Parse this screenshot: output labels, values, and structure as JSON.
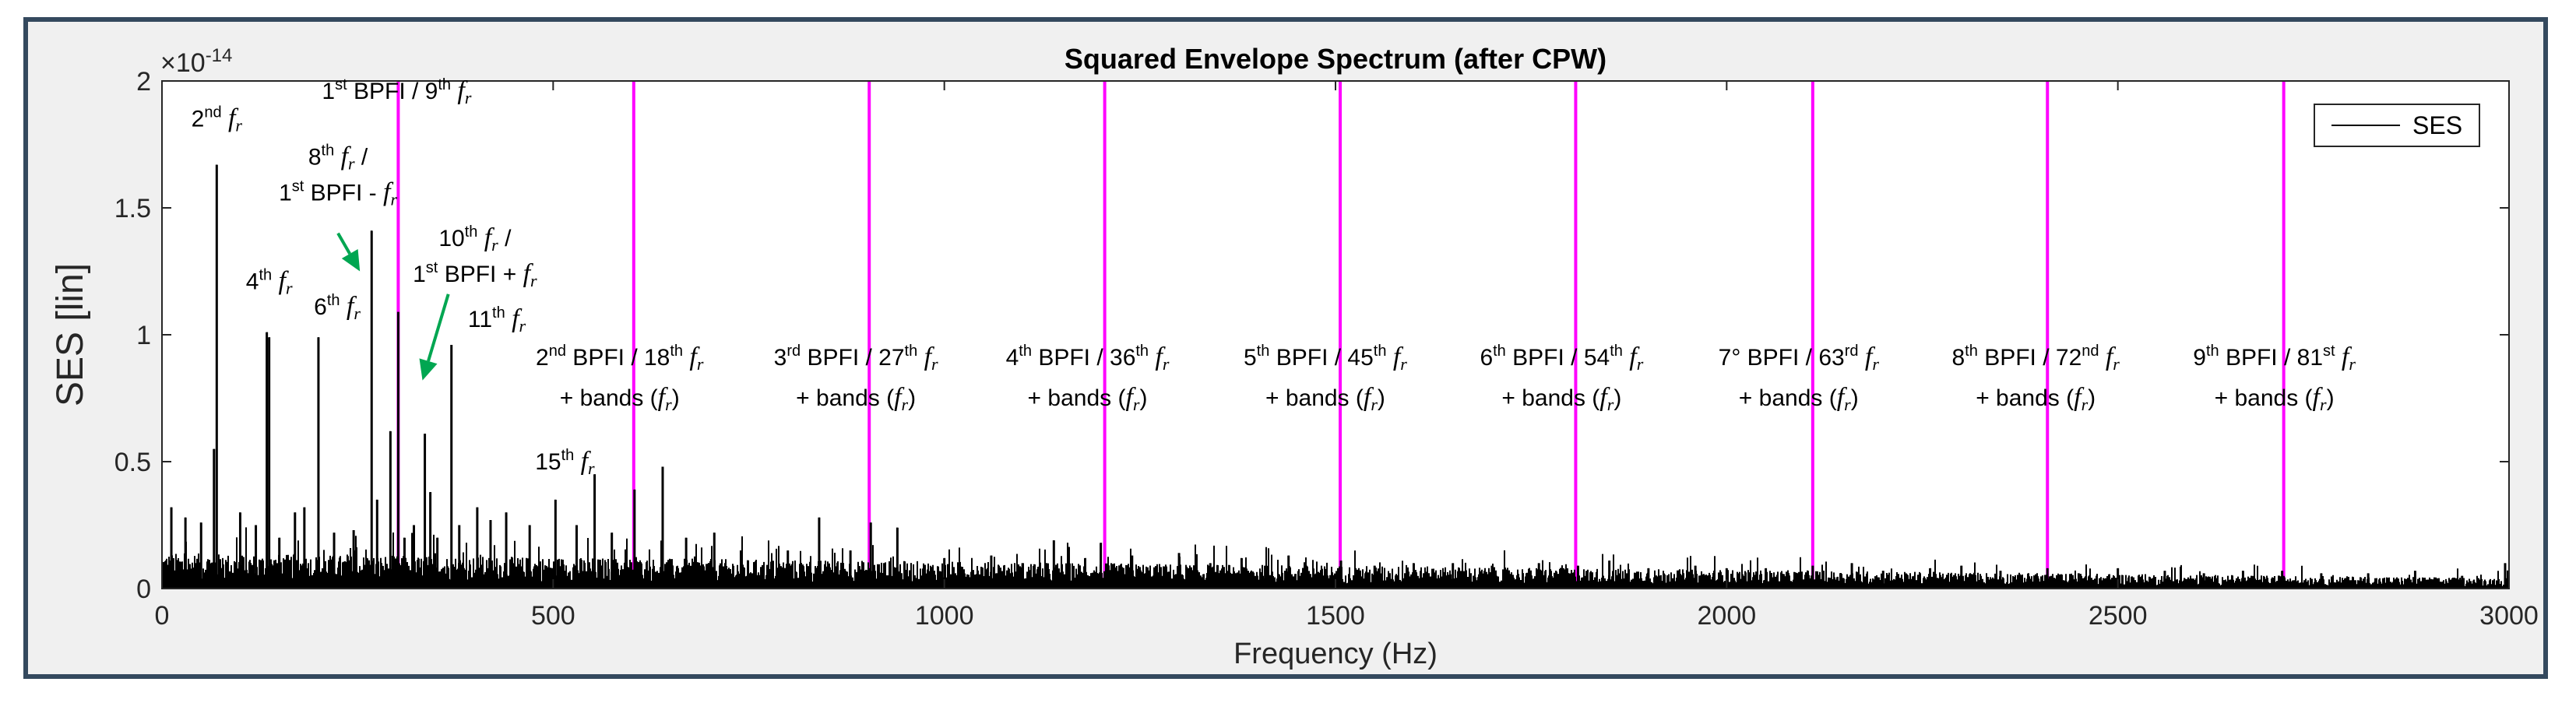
{
  "chart_data": {
    "type": "line",
    "title": "Squared Envelope Spectrum (after CPW)",
    "xlabel": "Frequency (Hz)",
    "ylabel": "SES [lin]",
    "y_exponent_label": "×10",
    "y_exponent": "-14",
    "xlim": [
      0,
      3000
    ],
    "ylim": [
      0,
      2
    ],
    "xticks": [
      0,
      500,
      1000,
      1500,
      2000,
      2500,
      3000
    ],
    "yticks": [
      0,
      0.5,
      1,
      1.5,
      2
    ],
    "ytick_labels": [
      "0",
      "0.5",
      "1",
      "1.5",
      "2"
    ],
    "legend": {
      "label": "SES",
      "position": "top-right"
    },
    "series": [
      {
        "name": "SES",
        "color": "#000000",
        "noise_floor": {
          "at_0": 0.1,
          "at_3000": 0.03
        },
        "peaks": [
          {
            "x": 12,
            "y": 0.32
          },
          {
            "x": 30,
            "y": 0.28
          },
          {
            "x": 50,
            "y": 0.26
          },
          {
            "x": 66.5,
            "y": 0.55
          },
          {
            "x": 70,
            "y": 1.67
          },
          {
            "x": 100,
            "y": 0.3
          },
          {
            "x": 120,
            "y": 0.25
          },
          {
            "x": 134,
            "y": 1.01
          },
          {
            "x": 137,
            "y": 0.99
          },
          {
            "x": 150,
            "y": 0.2
          },
          {
            "x": 170,
            "y": 0.3
          },
          {
            "x": 182,
            "y": 0.32
          },
          {
            "x": 200,
            "y": 0.99
          },
          {
            "x": 220,
            "y": 0.22
          },
          {
            "x": 245,
            "y": 0.23
          },
          {
            "x": 262,
            "y": 0.12
          },
          {
            "x": 268,
            "y": 1.41
          },
          {
            "x": 275,
            "y": 0.35
          },
          {
            "x": 292,
            "y": 0.62
          },
          {
            "x": 302,
            "y": 1.09
          },
          {
            "x": 310,
            "y": 0.2
          },
          {
            "x": 322,
            "y": 0.25
          },
          {
            "x": 336,
            "y": 0.61
          },
          {
            "x": 343,
            "y": 0.38
          },
          {
            "x": 352,
            "y": 0.2
          },
          {
            "x": 370,
            "y": 0.96
          },
          {
            "x": 380,
            "y": 0.25
          },
          {
            "x": 403,
            "y": 0.32
          },
          {
            "x": 420,
            "y": 0.27
          },
          {
            "x": 440,
            "y": 0.3
          },
          {
            "x": 470,
            "y": 0.25
          },
          {
            "x": 503,
            "y": 0.35
          },
          {
            "x": 530,
            "y": 0.25
          },
          {
            "x": 553,
            "y": 0.45
          },
          {
            "x": 575,
            "y": 0.22
          },
          {
            "x": 604,
            "y": 0.39
          },
          {
            "x": 640,
            "y": 0.48
          },
          {
            "x": 670,
            "y": 0.2
          },
          {
            "x": 706,
            "y": 0.22
          },
          {
            "x": 740,
            "y": 0.15
          },
          {
            "x": 800,
            "y": 0.15
          },
          {
            "x": 840,
            "y": 0.28
          },
          {
            "x": 880,
            "y": 0.15
          },
          {
            "x": 906,
            "y": 0.26
          },
          {
            "x": 940,
            "y": 0.24
          },
          {
            "x": 1000,
            "y": 0.12
          },
          {
            "x": 1060,
            "y": 0.13
          },
          {
            "x": 1100,
            "y": 0.1
          },
          {
            "x": 1140,
            "y": 0.19
          },
          {
            "x": 1180,
            "y": 0.12
          },
          {
            "x": 1200,
            "y": 0.18
          },
          {
            "x": 1240,
            "y": 0.13
          },
          {
            "x": 1300,
            "y": 0.14
          },
          {
            "x": 1340,
            "y": 0.1
          },
          {
            "x": 1380,
            "y": 0.12
          },
          {
            "x": 1410,
            "y": 0.09
          },
          {
            "x": 1440,
            "y": 0.13
          },
          {
            "x": 1507,
            "y": 0.11
          },
          {
            "x": 1550,
            "y": 0.09
          },
          {
            "x": 1600,
            "y": 0.1
          },
          {
            "x": 1650,
            "y": 0.1
          },
          {
            "x": 1700,
            "y": 0.09
          },
          {
            "x": 1760,
            "y": 0.1
          },
          {
            "x": 1810,
            "y": 0.09
          },
          {
            "x": 1850,
            "y": 0.11
          },
          {
            "x": 1900,
            "y": 0.08
          },
          {
            "x": 1960,
            "y": 0.09
          },
          {
            "x": 2000,
            "y": 0.08
          },
          {
            "x": 2050,
            "y": 0.08
          },
          {
            "x": 2110,
            "y": 0.09
          },
          {
            "x": 2160,
            "y": 0.1
          },
          {
            "x": 2200,
            "y": 0.07
          },
          {
            "x": 2260,
            "y": 0.08
          },
          {
            "x": 2300,
            "y": 0.09
          },
          {
            "x": 2350,
            "y": 0.07
          },
          {
            "x": 2410,
            "y": 0.08
          },
          {
            "x": 2450,
            "y": 0.06
          },
          {
            "x": 2500,
            "y": 0.08
          },
          {
            "x": 2560,
            "y": 0.07
          },
          {
            "x": 2610,
            "y": 0.06
          },
          {
            "x": 2660,
            "y": 0.07
          },
          {
            "x": 2710,
            "y": 0.07
          },
          {
            "x": 2760,
            "y": 0.06
          },
          {
            "x": 2820,
            "y": 0.06
          },
          {
            "x": 2880,
            "y": 0.07
          },
          {
            "x": 2940,
            "y": 0.05
          },
          {
            "x": 2995,
            "y": 0.1
          }
        ]
      }
    ],
    "bpfi_lines": {
      "color": "#ff00ff",
      "x": [
        302,
        603,
        904,
        1205,
        1506,
        1807,
        2110,
        2410,
        2712
      ]
    },
    "arrow_color": "#00a651",
    "annotations": [
      {
        "x": 70,
        "y": 1.82,
        "lines": [
          [
            [
              "2",
              "n"
            ],
            [
              "nd",
              "sup"
            ],
            [
              " ",
              "n"
            ],
            [
              "f",
              "fi"
            ],
            [
              "r",
              "fsub"
            ]
          ]
        ]
      },
      {
        "x": 300,
        "y": 1.93,
        "lines": [
          [
            [
              "1",
              "n"
            ],
            [
              "st",
              "sup"
            ],
            [
              " BPFI / 9",
              "n"
            ],
            [
              "th",
              "sup"
            ],
            [
              " ",
              "n"
            ],
            [
              "f",
              "fi"
            ],
            [
              "r",
              "fsub"
            ]
          ]
        ]
      },
      {
        "x": 225,
        "y": 1.67,
        "lines": [
          [
            [
              "8",
              "n"
            ],
            [
              "th",
              "sup"
            ],
            [
              " ",
              "n"
            ],
            [
              "f",
              "fi"
            ],
            [
              "r",
              "fsub"
            ],
            [
              " /",
              "n"
            ]
          ],
          [
            [
              "1",
              "n"
            ],
            [
              "st",
              "sup"
            ],
            [
              " BPFI - ",
              "n"
            ],
            [
              "f",
              "fi"
            ],
            [
              "r",
              "fsub"
            ]
          ]
        ]
      },
      {
        "x": 137,
        "y": 1.18,
        "lines": [
          [
            [
              "4",
              "n"
            ],
            [
              "th",
              "sup"
            ],
            [
              " ",
              "n"
            ],
            [
              "f",
              "fi"
            ],
            [
              "r",
              "fsub"
            ]
          ]
        ]
      },
      {
        "x": 224,
        "y": 1.08,
        "lines": [
          [
            [
              "6",
              "n"
            ],
            [
              "th",
              "sup"
            ],
            [
              " ",
              "n"
            ],
            [
              "f",
              "fi"
            ],
            [
              "r",
              "fsub"
            ]
          ]
        ]
      },
      {
        "x": 400,
        "y": 1.35,
        "lines": [
          [
            [
              "10",
              "n"
            ],
            [
              "th",
              "sup"
            ],
            [
              " ",
              "n"
            ],
            [
              "f",
              "fi"
            ],
            [
              "r",
              "fsub"
            ],
            [
              " /",
              "n"
            ]
          ],
          [
            [
              "1",
              "n"
            ],
            [
              "st",
              "sup"
            ],
            [
              " BPFI + ",
              "n"
            ],
            [
              "f",
              "fi"
            ],
            [
              "r",
              "fsub"
            ]
          ]
        ]
      },
      {
        "x": 428,
        "y": 1.03,
        "lines": [
          [
            [
              "11",
              "n"
            ],
            [
              "th",
              "sup"
            ],
            [
              " ",
              "n"
            ],
            [
              "f",
              "fi"
            ],
            [
              "r",
              "fsub"
            ]
          ]
        ]
      },
      {
        "x": 515,
        "y": 0.47,
        "lines": [
          [
            [
              "15",
              "n"
            ],
            [
              "th",
              "sup"
            ],
            [
              " ",
              "n"
            ],
            [
              "f",
              "fi"
            ],
            [
              "r",
              "fsub"
            ]
          ]
        ]
      },
      {
        "x": 585,
        "y": 0.88,
        "lines": [
          [
            [
              "2",
              "n"
            ],
            [
              "nd",
              "sup"
            ],
            [
              " BPFI / 18",
              "n"
            ],
            [
              "th",
              "sup"
            ],
            [
              " ",
              "n"
            ],
            [
              "f",
              "fi"
            ],
            [
              "r",
              "fsub"
            ]
          ],
          [
            [
              "+ bands (",
              "n"
            ],
            [
              "f",
              "fi"
            ],
            [
              "r",
              "fsub"
            ],
            [
              ")",
              "n"
            ]
          ]
        ]
      },
      {
        "x": 887,
        "y": 0.88,
        "lines": [
          [
            [
              "3",
              "n"
            ],
            [
              "rd",
              "sup"
            ],
            [
              " BPFI / 27",
              "n"
            ],
            [
              "th",
              "sup"
            ],
            [
              " ",
              "n"
            ],
            [
              "f",
              "fi"
            ],
            [
              "r",
              "fsub"
            ]
          ],
          [
            [
              "+ bands (",
              "n"
            ],
            [
              "f",
              "fi"
            ],
            [
              "r",
              "fsub"
            ],
            [
              ")",
              "n"
            ]
          ]
        ]
      },
      {
        "x": 1183,
        "y": 0.88,
        "lines": [
          [
            [
              "4",
              "n"
            ],
            [
              "th",
              "sup"
            ],
            [
              " BPFI / 36",
              "n"
            ],
            [
              "th",
              "sup"
            ],
            [
              " ",
              "n"
            ],
            [
              "f",
              "fi"
            ],
            [
              "r",
              "fsub"
            ]
          ],
          [
            [
              "+ bands (",
              "n"
            ],
            [
              "f",
              "fi"
            ],
            [
              "r",
              "fsub"
            ],
            [
              ")",
              "n"
            ]
          ]
        ]
      },
      {
        "x": 1487,
        "y": 0.88,
        "lines": [
          [
            [
              "5",
              "n"
            ],
            [
              "th",
              "sup"
            ],
            [
              " BPFI / 45",
              "n"
            ],
            [
              "th",
              "sup"
            ],
            [
              " ",
              "n"
            ],
            [
              "f",
              "fi"
            ],
            [
              "r",
              "fsub"
            ]
          ],
          [
            [
              "+ bands (",
              "n"
            ],
            [
              "f",
              "fi"
            ],
            [
              "r",
              "fsub"
            ],
            [
              ")",
              "n"
            ]
          ]
        ]
      },
      {
        "x": 1789,
        "y": 0.88,
        "lines": [
          [
            [
              "6",
              "n"
            ],
            [
              "th",
              "sup"
            ],
            [
              " BPFI / 54",
              "n"
            ],
            [
              "th",
              "sup"
            ],
            [
              " ",
              "n"
            ],
            [
              "f",
              "fi"
            ],
            [
              "r",
              "fsub"
            ]
          ],
          [
            [
              "+ bands (",
              "n"
            ],
            [
              "f",
              "fi"
            ],
            [
              "r",
              "fsub"
            ],
            [
              ")",
              "n"
            ]
          ]
        ]
      },
      {
        "x": 2092,
        "y": 0.88,
        "lines": [
          [
            [
              "7° BPFI / 63",
              "n"
            ],
            [
              "rd",
              "sup"
            ],
            [
              " ",
              "n"
            ],
            [
              "f",
              "fi"
            ],
            [
              "r",
              "fsub"
            ]
          ],
          [
            [
              "+ bands (",
              "n"
            ],
            [
              "f",
              "fi"
            ],
            [
              "r",
              "fsub"
            ],
            [
              ")",
              "n"
            ]
          ]
        ]
      },
      {
        "x": 2395,
        "y": 0.88,
        "lines": [
          [
            [
              "8",
              "n"
            ],
            [
              "th",
              "sup"
            ],
            [
              " BPFI / 72",
              "n"
            ],
            [
              "nd",
              "sup"
            ],
            [
              " ",
              "n"
            ],
            [
              "f",
              "fi"
            ],
            [
              "r",
              "fsub"
            ]
          ],
          [
            [
              "+ bands (",
              "n"
            ],
            [
              "f",
              "fi"
            ],
            [
              "r",
              "fsub"
            ],
            [
              ")",
              "n"
            ]
          ]
        ]
      },
      {
        "x": 2700,
        "y": 0.88,
        "lines": [
          [
            [
              "9",
              "n"
            ],
            [
              "th",
              "sup"
            ],
            [
              " BPFI / 81",
              "n"
            ],
            [
              "st",
              "sup"
            ],
            [
              " ",
              "n"
            ],
            [
              "f",
              "fi"
            ],
            [
              "r",
              "fsub"
            ]
          ],
          [
            [
              "+ bands (",
              "n"
            ],
            [
              "f",
              "fi"
            ],
            [
              "r",
              "fsub"
            ],
            [
              ")",
              "n"
            ]
          ]
        ]
      }
    ],
    "arrows": [
      {
        "from": [
          225,
          1.4
        ],
        "to": [
          253,
          1.25
        ]
      },
      {
        "from": [
          366,
          1.16
        ],
        "to": [
          333,
          0.82
        ]
      }
    ]
  }
}
